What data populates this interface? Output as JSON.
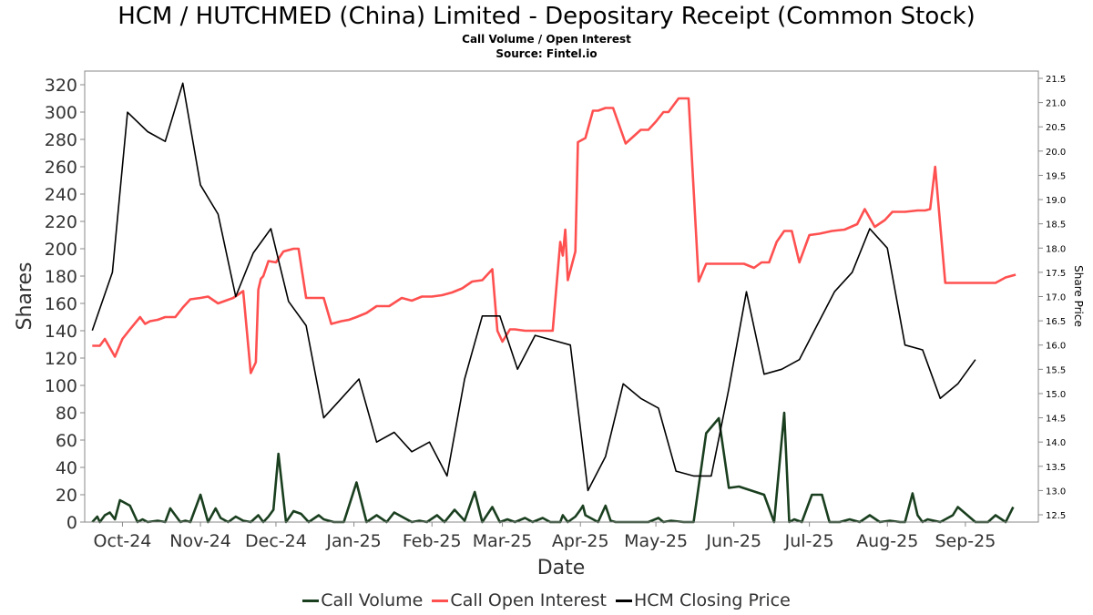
{
  "chart_data": {
    "type": "line",
    "title": "HCM / HUTCHMED (China) Limited - Depositary Receipt (Common Stock)",
    "subtitle": "Call Volume / Open Interest",
    "source": "Source: Fintel.io",
    "xlabel": "Date",
    "ylabel": "Shares",
    "y2label": "Share Price",
    "ylim": [
      0,
      330
    ],
    "y2lim": [
      12.35,
      21.65
    ],
    "xlim": [
      "2024-09-16",
      "2025-09-30"
    ],
    "yticks": [
      0,
      20,
      40,
      60,
      80,
      100,
      120,
      140,
      160,
      180,
      200,
      220,
      240,
      260,
      280,
      300,
      320
    ],
    "y2ticks": [
      12.5,
      13.0,
      13.5,
      14.0,
      14.5,
      15.0,
      15.5,
      16.0,
      16.5,
      17.0,
      17.5,
      18.0,
      18.5,
      19.0,
      19.5,
      20.0,
      20.5,
      21.0,
      21.5
    ],
    "xticks": [
      {
        "date": "2024-10-01",
        "label": "Oct-24"
      },
      {
        "date": "2024-11-01",
        "label": "Nov-24"
      },
      {
        "date": "2024-12-01",
        "label": "Dec-24"
      },
      {
        "date": "2025-01-01",
        "label": "Jan-25"
      },
      {
        "date": "2025-02-01",
        "label": "Feb-25"
      },
      {
        "date": "2025-03-01",
        "label": "Mar-25"
      },
      {
        "date": "2025-04-01",
        "label": "Apr-25"
      },
      {
        "date": "2025-05-01",
        "label": "May-25"
      },
      {
        "date": "2025-06-01",
        "label": "Jun-25"
      },
      {
        "date": "2025-07-01",
        "label": "Jul-25"
      },
      {
        "date": "2025-08-01",
        "label": "Aug-25"
      },
      {
        "date": "2025-09-01",
        "label": "Sep-25"
      }
    ],
    "grid": false,
    "legend_position": "bottom",
    "series": [
      {
        "name": "Call Volume",
        "axis": "left",
        "color": "#1a3f1f",
        "x": [
          "2024-09-19",
          "2024-09-21",
          "2024-09-22",
          "2024-09-24",
          "2024-09-26",
          "2024-09-28",
          "2024-09-30",
          "2024-10-04",
          "2024-10-07",
          "2024-10-09",
          "2024-10-11",
          "2024-10-15",
          "2024-10-18",
          "2024-10-20",
          "2024-10-24",
          "2024-10-26",
          "2024-10-28",
          "2024-11-01",
          "2024-11-04",
          "2024-11-07",
          "2024-11-09",
          "2024-11-12",
          "2024-11-15",
          "2024-11-18",
          "2024-11-21",
          "2024-11-24",
          "2024-11-26",
          "2024-11-28",
          "2024-11-30",
          "2024-12-02",
          "2024-12-05",
          "2024-12-08",
          "2024-12-11",
          "2024-12-14",
          "2024-12-18",
          "2024-12-20",
          "2024-12-24",
          "2024-12-28",
          "2025-01-02",
          "2025-01-06",
          "2025-01-10",
          "2025-01-14",
          "2025-01-17",
          "2025-01-21",
          "2025-01-24",
          "2025-01-27",
          "2025-01-30",
          "2025-02-03",
          "2025-02-06",
          "2025-02-10",
          "2025-02-14",
          "2025-02-18",
          "2025-02-21",
          "2025-02-25",
          "2025-02-28",
          "2025-03-03",
          "2025-03-06",
          "2025-03-10",
          "2025-03-13",
          "2025-03-17",
          "2025-03-20",
          "2025-03-23",
          "2025-03-24",
          "2025-03-25",
          "2025-03-27",
          "2025-03-30",
          "2025-04-01",
          "2025-04-02",
          "2025-04-03",
          "2025-04-05",
          "2025-04-08",
          "2025-04-11",
          "2025-04-13",
          "2025-04-15",
          "2025-04-18",
          "2025-04-22",
          "2025-04-28",
          "2025-05-02",
          "2025-05-04",
          "2025-05-07",
          "2025-05-12",
          "2025-05-16",
          "2025-05-21",
          "2025-05-26",
          "2025-05-30",
          "2025-06-03",
          "2025-06-13",
          "2025-06-17",
          "2025-06-21",
          "2025-06-23",
          "2025-06-25",
          "2025-06-28",
          "2025-07-02",
          "2025-07-06",
          "2025-07-09",
          "2025-07-13",
          "2025-07-17",
          "2025-07-21",
          "2025-07-25",
          "2025-07-29",
          "2025-08-02",
          "2025-08-06",
          "2025-08-08",
          "2025-08-11",
          "2025-08-13",
          "2025-08-15",
          "2025-08-17",
          "2025-08-22",
          "2025-08-27",
          "2025-08-29",
          "2025-09-05",
          "2025-09-10",
          "2025-09-13",
          "2025-09-17",
          "2025-09-20"
        ],
        "values": [
          0,
          4,
          0,
          5,
          7,
          2,
          16,
          12,
          0,
          2,
          0,
          1,
          0,
          10,
          0,
          1,
          0,
          20,
          0,
          10,
          3,
          0,
          4,
          1,
          0,
          5,
          0,
          4,
          9,
          50,
          0,
          8,
          6,
          0,
          5,
          2,
          0,
          0,
          29,
          0,
          5,
          0,
          7,
          3,
          0,
          1,
          0,
          5,
          0,
          9,
          1,
          22,
          0,
          11,
          0,
          2,
          0,
          3,
          0,
          3,
          0,
          0,
          0,
          5,
          0,
          4,
          9,
          12,
          5,
          3,
          0,
          12,
          1,
          0,
          0,
          0,
          0,
          3,
          0,
          1,
          0,
          0,
          65,
          76,
          25,
          26,
          20,
          0,
          80,
          0,
          2,
          0,
          20,
          20,
          0,
          0,
          2,
          0,
          5,
          0,
          1,
          0,
          0,
          21,
          5,
          0,
          2,
          0,
          5,
          11,
          0,
          0,
          5,
          0,
          11
        ],
        "_note": ""
      },
      {
        "name": "Call Open Interest",
        "axis": "left",
        "color": "#ff5050",
        "x": [
          "2024-09-19",
          "2024-09-22",
          "2024-09-24",
          "2024-09-28",
          "2024-10-01",
          "2024-10-04",
          "2024-10-08",
          "2024-10-10",
          "2024-10-12",
          "2024-10-15",
          "2024-10-18",
          "2024-10-22",
          "2024-10-25",
          "2024-10-28",
          "2024-11-01",
          "2024-11-04",
          "2024-11-08",
          "2024-11-11",
          "2024-11-14",
          "2024-11-18",
          "2024-11-21",
          "2024-11-23",
          "2024-11-24",
          "2024-11-25",
          "2024-11-26",
          "2024-11-28",
          "2024-12-01",
          "2024-12-04",
          "2024-12-08",
          "2024-12-10",
          "2024-12-13",
          "2024-12-16",
          "2024-12-20",
          "2024-12-23",
          "2024-12-27",
          "2024-12-30",
          "2025-01-02",
          "2025-01-06",
          "2025-01-10",
          "2025-01-15",
          "2025-01-20",
          "2025-01-24",
          "2025-01-28",
          "2025-02-01",
          "2025-02-05",
          "2025-02-09",
          "2025-02-13",
          "2025-02-17",
          "2025-02-21",
          "2025-02-25",
          "2025-02-27",
          "2025-03-01",
          "2025-03-04",
          "2025-03-06",
          "2025-03-10",
          "2025-03-14",
          "2025-03-17",
          "2025-03-21",
          "2025-03-24",
          "2025-03-25",
          "2025-03-26",
          "2025-03-27",
          "2025-03-30",
          "2025-03-31",
          "2025-04-02",
          "2025-04-03",
          "2025-04-06",
          "2025-04-08",
          "2025-04-11",
          "2025-04-14",
          "2025-04-19",
          "2025-04-25",
          "2025-04-28",
          "2025-05-01",
          "2025-05-04",
          "2025-05-06",
          "2025-05-10",
          "2025-05-14",
          "2025-05-18",
          "2025-05-21",
          "2025-05-24",
          "2025-05-25",
          "2025-06-05",
          "2025-06-09",
          "2025-06-12",
          "2025-06-15",
          "2025-06-18",
          "2025-06-21",
          "2025-06-24",
          "2025-06-27",
          "2025-07-01",
          "2025-07-05",
          "2025-07-10",
          "2025-07-15",
          "2025-07-20",
          "2025-07-23",
          "2025-07-27",
          "2025-07-31",
          "2025-08-03",
          "2025-08-08",
          "2025-08-13",
          "2025-08-16",
          "2025-08-18",
          "2025-08-20",
          "2025-08-24",
          "2025-08-29",
          "2025-09-02",
          "2025-09-06",
          "2025-09-13",
          "2025-09-17",
          "2025-09-21"
        ],
        "values": [
          129,
          129,
          134,
          121,
          134,
          141,
          150,
          145,
          147,
          148,
          150,
          150,
          157,
          163,
          164,
          165,
          160,
          162,
          164,
          169,
          109,
          117,
          170,
          178,
          180,
          191,
          190,
          198,
          200,
          200,
          164,
          164,
          164,
          145,
          147,
          148,
          150,
          153,
          158,
          158,
          164,
          162,
          165,
          165,
          166,
          168,
          171,
          176,
          177,
          185,
          140,
          132,
          141,
          141,
          140,
          140,
          140,
          140,
          205,
          195,
          214,
          177,
          198,
          278,
          280,
          281,
          301,
          301,
          303,
          303,
          277,
          287,
          287,
          293,
          300,
          300,
          310,
          310,
          176,
          189,
          189,
          189,
          189,
          186,
          190,
          190,
          205,
          213,
          213,
          190,
          210,
          211,
          213,
          214,
          218,
          229,
          216,
          221,
          227,
          227,
          228,
          228,
          229,
          260,
          175,
          175,
          175,
          175,
          175,
          179,
          181
        ],
        "_note": ""
      },
      {
        "name": "HCM Closing Price",
        "axis": "right",
        "color": "#000000",
        "x": [
          "2024-09-19",
          "2024-09-27",
          "2024-10-03",
          "2024-10-11",
          "2024-10-18",
          "2024-10-25",
          "2024-11-01",
          "2024-11-08",
          "2024-11-15",
          "2024-11-22",
          "2024-11-29",
          "2024-12-06",
          "2024-12-13",
          "2024-12-20",
          "2024-12-27",
          "2025-01-03",
          "2025-01-10",
          "2025-01-17",
          "2025-01-24",
          "2025-01-31",
          "2025-02-07",
          "2025-02-14",
          "2025-02-21",
          "2025-02-28",
          "2025-03-07",
          "2025-03-14",
          "2025-03-21",
          "2025-03-28",
          "2025-04-04",
          "2025-04-11",
          "2025-04-18",
          "2025-04-25",
          "2025-05-02",
          "2025-05-09",
          "2025-05-16",
          "2025-05-23",
          "2025-05-30",
          "2025-06-06",
          "2025-06-13",
          "2025-06-20",
          "2025-06-27",
          "2025-07-04",
          "2025-07-11",
          "2025-07-18",
          "2025-07-25",
          "2025-08-01",
          "2025-08-08",
          "2025-08-15",
          "2025-08-22",
          "2025-08-29",
          "2025-09-05",
          "2025-09-12",
          "2025-09-19"
        ],
        "values": [
          16.3,
          17.5,
          20.8,
          20.4,
          20.2,
          21.4,
          19.3,
          18.7,
          17.0,
          17.9,
          18.4,
          16.9,
          16.4,
          14.5,
          14.9,
          15.3,
          14.0,
          14.2,
          13.8,
          14.0,
          13.3,
          15.3,
          16.6,
          16.6,
          15.5,
          16.2,
          16.1,
          16.0,
          13.0,
          13.7,
          15.2,
          14.9,
          14.7,
          13.4,
          13.3,
          13.3,
          15.1,
          17.1,
          15.4,
          15.5,
          15.7,
          16.4,
          17.1,
          17.5,
          18.4,
          18.0,
          16.0,
          15.9,
          14.9,
          15.2,
          15.7,
          null,
          null
        ],
        "_note": ""
      }
    ]
  }
}
